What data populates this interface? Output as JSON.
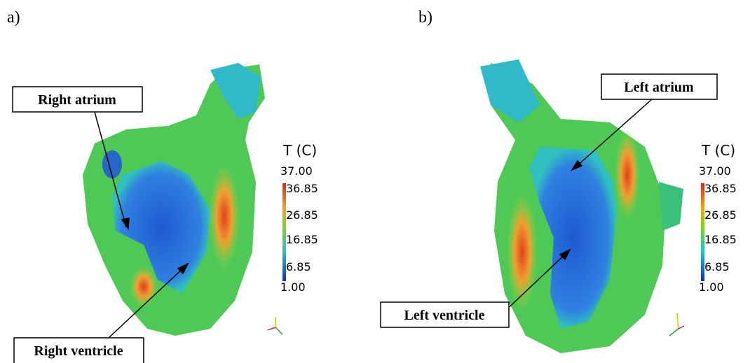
{
  "panels": [
    {
      "label": "a)",
      "colorbar": {
        "title": "T (C)",
        "max": "37.00",
        "ticks": [
          "36.85",
          "26.85",
          "16.85",
          "6.85"
        ],
        "min": "1.00"
      },
      "callouts": [
        "Right atrium",
        "Right ventricle"
      ]
    },
    {
      "label": "b)",
      "colorbar": {
        "title": "T (C)",
        "max": "37.00",
        "ticks": [
          "36.85",
          "26.85",
          "16.85",
          "6.85"
        ],
        "min": "1.00"
      },
      "callouts": [
        "Left atrium",
        "Left ventricle"
      ]
    }
  ]
}
